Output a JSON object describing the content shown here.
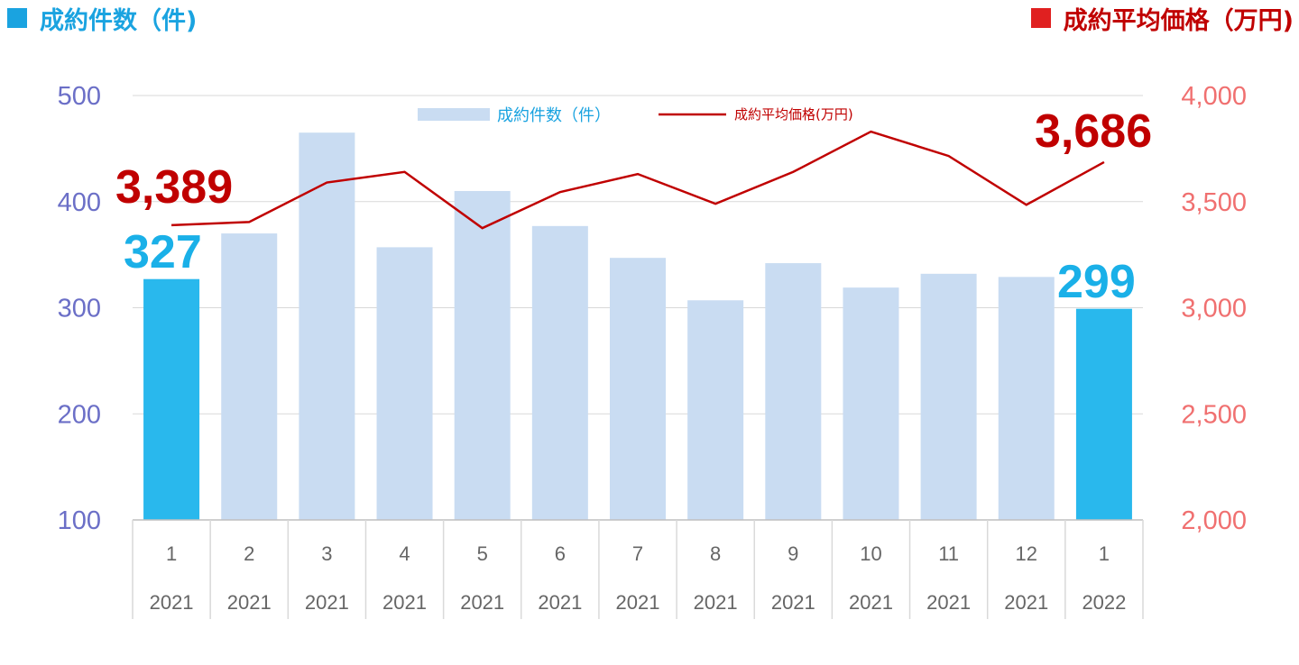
{
  "header": {
    "left_title": "成約件数（件)",
    "right_title": "成約平均価格（万円)"
  },
  "chart_data": {
    "type": "bar+line",
    "categories": [
      "1",
      "2",
      "3",
      "4",
      "5",
      "6",
      "7",
      "8",
      "9",
      "10",
      "11",
      "12",
      "1"
    ],
    "years": [
      "2021",
      "2021",
      "2021",
      "2021",
      "2021",
      "2021",
      "2021",
      "2021",
      "2021",
      "2021",
      "2021",
      "2021",
      "2022"
    ],
    "series": [
      {
        "name": "成約件数（件）",
        "type": "bar",
        "axis": "left",
        "values": [
          327,
          370,
          465,
          357,
          410,
          377,
          347,
          307,
          342,
          319,
          332,
          329,
          299
        ],
        "highlight_indices": [
          0,
          12
        ],
        "color": "#c9dcf2",
        "highlight_color": "#29b8ed"
      },
      {
        "name": "成約平均価格(万円)",
        "type": "line",
        "axis": "right",
        "values": [
          3389,
          3404,
          3590,
          3640,
          3375,
          3545,
          3630,
          3490,
          3640,
          3830,
          3715,
          3485,
          3686
        ],
        "color": "#c00000"
      }
    ],
    "left_axis": {
      "ylim": [
        100,
        500
      ],
      "ticks": [
        "100",
        "200",
        "300",
        "400",
        "500"
      ]
    },
    "right_axis": {
      "ylim": [
        2000,
        4000
      ],
      "ticks": [
        "2,000",
        "2,500",
        "3,000",
        "3,500",
        "4,000"
      ]
    },
    "callouts": {
      "first_count": "327",
      "last_count": "299",
      "first_price": "3,389",
      "last_price": "3,686"
    },
    "grid": true,
    "legend": "top-center"
  }
}
